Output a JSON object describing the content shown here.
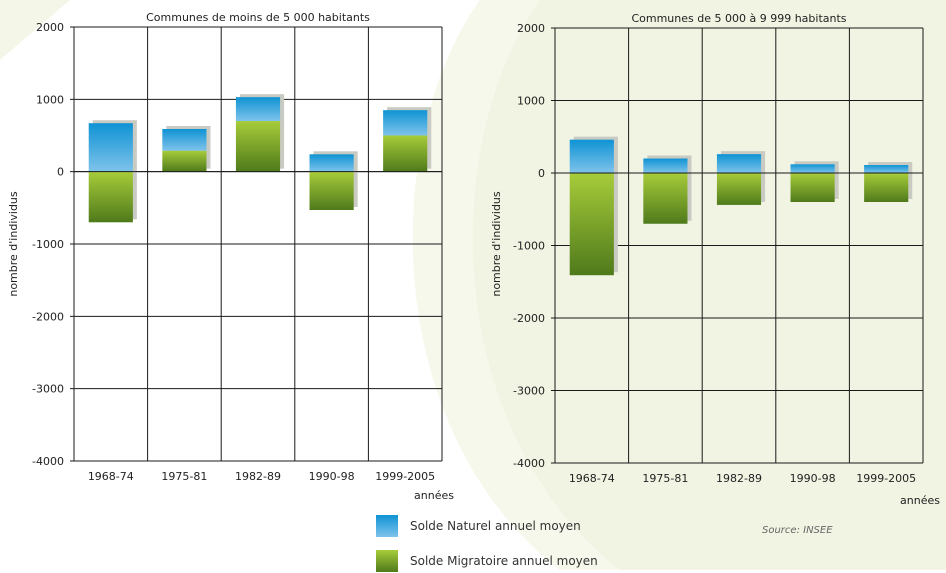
{
  "colors": {
    "naturel": "#3aa6d8",
    "migratoire": "#6f9a22",
    "background_shape": "#f1f3e3"
  },
  "legend": {
    "naturel_label": "Solde Naturel annuel moyen",
    "migratoire_label": "Solde Migratoire annuel moyen"
  },
  "source": "Source: INSEE",
  "chart_data": [
    {
      "type": "bar",
      "stacked": true,
      "title": "Communes de moins de 5 000 habitants",
      "xlabel": "années",
      "ylabel": "nombre d'individus",
      "ylim": [
        -4000,
        2000
      ],
      "yticks": [
        "2000",
        "1000",
        "0",
        "-1000",
        "-2000",
        "-3000",
        "-4000"
      ],
      "categories": [
        "1968-74",
        "1975-81",
        "1982-89",
        "1990-98",
        "1999-2005"
      ],
      "series": [
        {
          "name": "Solde Naturel annuel moyen",
          "values": [
            670,
            300,
            330,
            240,
            350
          ]
        },
        {
          "name": "Solde Migratoire annuel moyen",
          "values": [
            -700,
            290,
            700,
            -530,
            500
          ]
        }
      ],
      "grid": true
    },
    {
      "type": "bar",
      "stacked": true,
      "title": "Communes de 5 000 à 9 999 habitants",
      "xlabel": "années",
      "ylabel": "nombre d'individus",
      "ylim": [
        -4000,
        2000
      ],
      "yticks": [
        "2000",
        "1000",
        "0",
        "-1000",
        "-2000",
        "-3000",
        "-4000"
      ],
      "categories": [
        "1968-74",
        "1975-81",
        "1982-89",
        "1990-98",
        "1999-2005"
      ],
      "series": [
        {
          "name": "Solde Naturel annuel moyen",
          "values": [
            460,
            200,
            260,
            120,
            110
          ]
        },
        {
          "name": "Solde Migratoire annuel moyen",
          "values": [
            -1410,
            -700,
            -440,
            -400,
            -400
          ]
        }
      ],
      "grid": true
    }
  ]
}
